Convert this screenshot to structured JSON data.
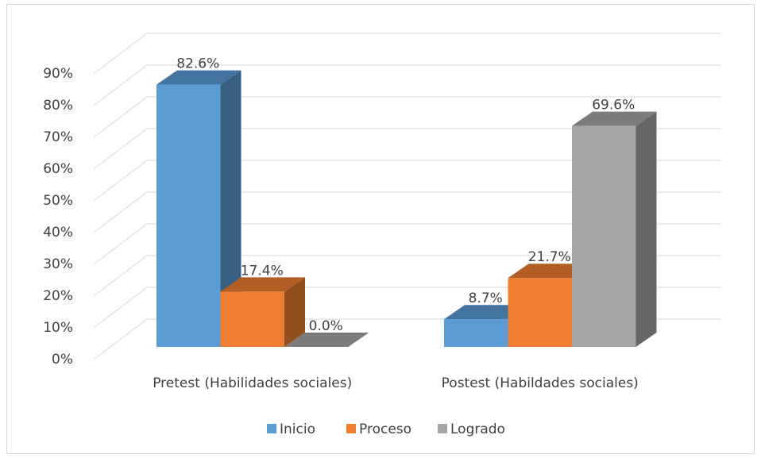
{
  "chart_data": {
    "type": "bar3d",
    "categories": [
      "Pretest (Habilidades sociales)",
      "Postest (Habildades sociales)"
    ],
    "series": [
      {
        "name": "Inicio",
        "color": "#5b9bd5",
        "values": [
          82.6,
          8.7
        ],
        "value_labels": [
          "82.6%",
          "8.7%"
        ]
      },
      {
        "name": "Proceso",
        "color": "#ed7d31",
        "values": [
          17.4,
          21.7
        ],
        "value_labels": [
          "17.4%",
          "21.7%"
        ]
      },
      {
        "name": "Logrado",
        "color": "#a5a5a5",
        "values": [
          0.0,
          69.6
        ],
        "value_labels": [
          "0.0%",
          "69.6%"
        ]
      }
    ],
    "ylim": [
      0,
      90
    ],
    "yticks": [
      {
        "value": 0,
        "label": "0%"
      },
      {
        "value": 10,
        "label": "10%"
      },
      {
        "value": 20,
        "label": "20%"
      },
      {
        "value": 30,
        "label": "30%"
      },
      {
        "value": 40,
        "label": "40%"
      },
      {
        "value": 50,
        "label": "50%"
      },
      {
        "value": 60,
        "label": "60%"
      },
      {
        "value": 70,
        "label": "70%"
      },
      {
        "value": 80,
        "label": "80%"
      },
      {
        "value": 90,
        "label": "90%"
      }
    ],
    "grid": true,
    "legend": "bottom"
  }
}
